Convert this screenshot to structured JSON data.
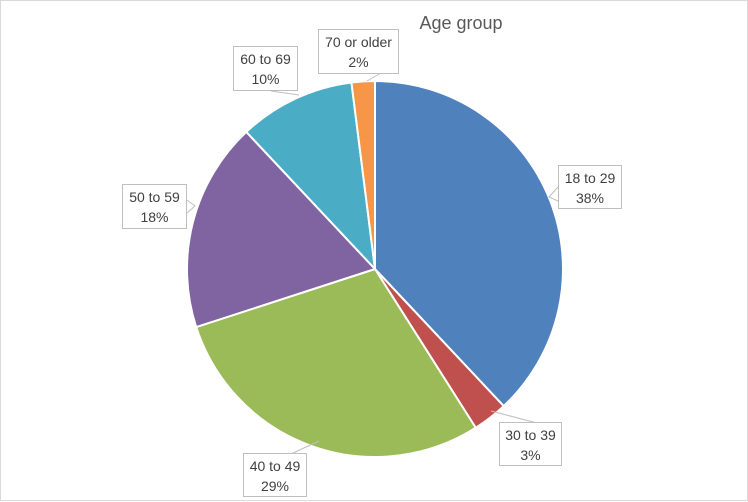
{
  "chart_data": {
    "type": "pie",
    "title": "Age group",
    "categories": [
      "18 to 29",
      "30 to 39",
      "40 to 49",
      "50 to 59",
      "60 to 69",
      "70 or older"
    ],
    "values": [
      38,
      3,
      29,
      18,
      10,
      2
    ],
    "value_labels": [
      "38%",
      "3%",
      "29%",
      "18%",
      "10%",
      "2%"
    ],
    "colors": [
      "#4F81BD",
      "#C0504D",
      "#9BBB59",
      "#8064A2",
      "#4BACC6",
      "#F79646"
    ],
    "start_angle": "12 o'clock",
    "direction": "clockwise",
    "legend": "none",
    "data_labels": "callouts with category name and percentage"
  },
  "labels": [
    {
      "name": "18 to 29",
      "pct": "38%"
    },
    {
      "name": "30 to 39",
      "pct": "3%"
    },
    {
      "name": "40 to 49",
      "pct": "29%"
    },
    {
      "name": "50 to 59",
      "pct": "18%"
    },
    {
      "name": "60 to 69",
      "pct": "10%"
    },
    {
      "name": "70 or older",
      "pct": "2%"
    }
  ]
}
